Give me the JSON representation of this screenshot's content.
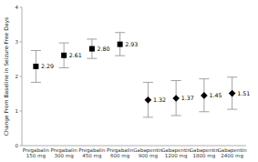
{
  "chart_data": {
    "type": "dot",
    "ylabel": "Change From Baseline in Seizure-Free Days",
    "categories": [
      "Pregabalin\n150 mg",
      "Pregabalin\n300 mg",
      "Pregabalin\n450 mg",
      "Pregabalin\n600 mg",
      "Gabapentin\n900 mg",
      "Gabapentin\n1200 mg",
      "Gabapentin\n1800 mg",
      "Gabapentin\n2400 mg"
    ],
    "series": [
      {
        "color": "black",
        "marker": "square",
        "values": [
          2.29,
          2.61,
          2.8,
          2.93,
          null,
          null,
          null,
          null
        ],
        "value_labels": [
          "2.29",
          "2.61",
          "2.80",
          "2.93",
          null,
          null,
          null,
          null
        ],
        "ci_lower": [
          1.83,
          2.25,
          2.52,
          2.6,
          null,
          null,
          null,
          null
        ],
        "ci_upper": [
          2.75,
          2.97,
          3.08,
          3.27,
          null,
          null,
          null,
          null
        ]
      },
      {
        "color": "black",
        "marker": "diamond",
        "values": [
          null,
          null,
          null,
          null,
          1.32,
          1.37,
          1.45,
          1.51
        ],
        "value_labels": [
          null,
          null,
          null,
          null,
          "1.32",
          "1.37",
          "1.45",
          "1.51"
        ],
        "ci_lower": [
          null,
          null,
          null,
          null,
          0.82,
          0.87,
          0.98,
          1.05
        ],
        "ci_upper": [
          null,
          null,
          null,
          null,
          1.83,
          1.88,
          1.93,
          1.98
        ]
      }
    ],
    "ylim": [
      0,
      4
    ],
    "yticks": [
      0,
      1,
      2,
      3,
      4
    ],
    "grid": false,
    "data_labels": true
  }
}
